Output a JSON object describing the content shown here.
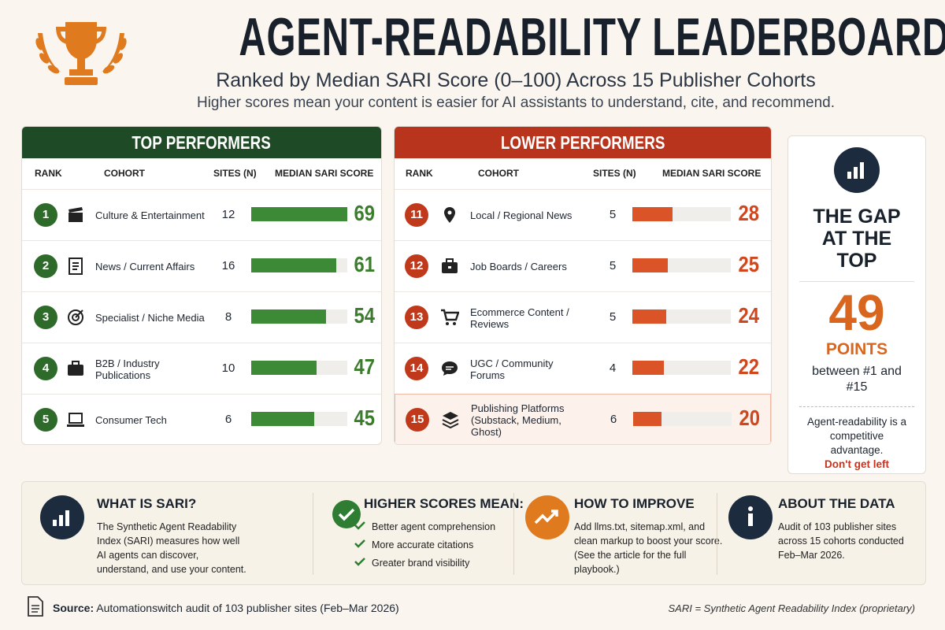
{
  "header": {
    "title": "AGENT-READABILITY LEADERBOARD",
    "subtitle": "Ranked by Median SARI Score (0–100) Across 15 Publisher Cohorts",
    "description": "Higher scores mean your content is easier for AI assistants to understand, cite, and recommend."
  },
  "top": {
    "heading": "TOP PERFORMERS",
    "columns": [
      "RANK",
      "COHORT",
      "SITES (N)",
      "MEDIAN SARI SCORE"
    ],
    "rows": [
      {
        "rank": 1,
        "cohort": "Culture & Entertainment",
        "sites": 12,
        "score": 69
      },
      {
        "rank": 2,
        "cohort": "News / Current Affairs",
        "sites": 16,
        "score": 61
      },
      {
        "rank": 3,
        "cohort": "Specialist / Niche Media",
        "sites": 8,
        "score": 54
      },
      {
        "rank": 4,
        "cohort": "B2B / Industry Publications",
        "sites": 10,
        "score": 47
      },
      {
        "rank": 5,
        "cohort": "Consumer Tech",
        "sites": 6,
        "score": 45
      }
    ]
  },
  "lower": {
    "heading": "LOWER PERFORMERS",
    "columns": [
      "RANK",
      "COHORT",
      "SITES (N)",
      "MEDIAN SARI SCORE"
    ],
    "rows": [
      {
        "rank": 11,
        "cohort": "Local / Regional News",
        "sites": 5,
        "score": 28
      },
      {
        "rank": 12,
        "cohort": "Job Boards / Careers",
        "sites": 5,
        "score": 25
      },
      {
        "rank": 13,
        "cohort": "Ecommerce Content / Reviews",
        "sites": 5,
        "score": 24
      },
      {
        "rank": 14,
        "cohort": "UGC / Community Forums",
        "sites": 4,
        "score": 22
      },
      {
        "rank": 15,
        "cohort": "Publishing Platforms",
        "note": "(Substack, Medium, Ghost)",
        "sites": 6,
        "score": 20
      }
    ]
  },
  "gap": {
    "heading": "THE GAP AT THE TOP",
    "value": 49,
    "unit": "POINTS",
    "text": "between #1 and #15",
    "note": "Agent-readability is a competitive advantage.",
    "cta": "Don't get left behind."
  },
  "info": [
    {
      "title": "WHAT IS SARI?",
      "body": "The Synthetic Agent Readability Index (SARI) measures how well AI agents can discover, understand, and use your content."
    },
    {
      "title": "HIGHER SCORES MEAN:",
      "items": [
        "Better agent comprehension",
        "More accurate citations",
        "Greater brand visibility"
      ]
    },
    {
      "title": "HOW TO IMPROVE",
      "body": "Add llms.txt, sitemap.xml, and clean markup to boost your score. (See the article for the full playbook.)"
    },
    {
      "title": "ABOUT THE DATA",
      "body": "Audit of 103 publisher sites across 15 cohorts conducted Feb–Mar 2026."
    }
  ],
  "footer": {
    "source_label": "Source:",
    "source": "Automationswitch audit of 103 publisher sites (Feb–Mar 2026)",
    "footnote": "SARI = Synthetic Agent Readability Index (proprietary)"
  }
}
